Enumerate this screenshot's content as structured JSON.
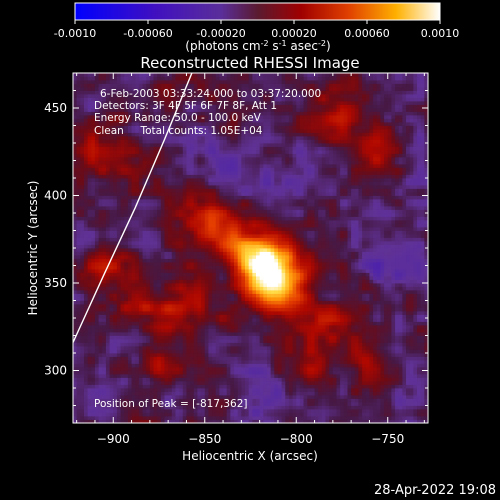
{
  "chart_data": {
    "type": "heatmap",
    "title": "Reconstructed RHESSI Image",
    "xlabel": "Heliocentric X (arcsec)",
    "ylabel": "Heliocentric Y (arcsec)",
    "xlim": [
      -922,
      -728
    ],
    "ylim": [
      270,
      470
    ],
    "xticks": [
      -900,
      -850,
      -800,
      -750
    ],
    "yticks": [
      300,
      350,
      400,
      450
    ],
    "colorbar": {
      "range": [
        -0.001,
        0.001
      ],
      "ticks": [
        "-0.0010",
        "-0.00060",
        "-0.00020",
        "0.00020",
        "0.00060",
        "0.0010"
      ],
      "unit_prefix": "(photons cm",
      "unit_exp1": "-2",
      "unit_mid": " s",
      "unit_exp2": "-1",
      "unit_mid2": " asec",
      "unit_exp3": "-2",
      "unit_suffix": ")"
    },
    "annotations": {
      "time": "6-Feb-2003 03:33:24.000 to 03:37:20.000",
      "detectors": "Detectors: 3F 4F 5F 6F 7F 8F, Att 1",
      "energy": "Energy Range: 50.0 - 100.0 keV",
      "clean": "Clean     Total counts: 1.05E+04",
      "peak": "Position of Peak = [-817,362]"
    },
    "peak": {
      "x": -817,
      "y": 362,
      "value": 0.001
    },
    "blobs": [
      {
        "x": -817,
        "y": 362,
        "amp": 0.00105,
        "sigma": 10
      },
      {
        "x": -808,
        "y": 346,
        "amp": 0.0006,
        "sigma": 11
      },
      {
        "x": -833,
        "y": 372,
        "amp": 0.0004,
        "sigma": 9
      },
      {
        "x": -851,
        "y": 385,
        "amp": 0.00035,
        "sigma": 10
      },
      {
        "x": -862,
        "y": 338,
        "amp": 0.0003,
        "sigma": 11
      },
      {
        "x": -888,
        "y": 334,
        "amp": 0.00028,
        "sigma": 9
      },
      {
        "x": -902,
        "y": 355,
        "amp": 0.00025,
        "sigma": 10
      },
      {
        "x": -873,
        "y": 305,
        "amp": 0.00022,
        "sigma": 8
      },
      {
        "x": -782,
        "y": 324,
        "amp": 0.00028,
        "sigma": 10
      },
      {
        "x": -760,
        "y": 304,
        "amp": 0.00022,
        "sigma": 9
      },
      {
        "x": -778,
        "y": 446,
        "amp": 0.0003,
        "sigma": 10
      },
      {
        "x": -760,
        "y": 426,
        "amp": 0.00022,
        "sigma": 9
      },
      {
        "x": -905,
        "y": 431,
        "amp": 0.00026,
        "sigma": 10
      },
      {
        "x": -888,
        "y": 411,
        "amp": 0.0002,
        "sigma": 9
      },
      {
        "x": -842,
        "y": 447,
        "amp": 0.00016,
        "sigma": 8
      },
      {
        "x": -790,
        "y": 302,
        "amp": 0.0002,
        "sigma": 8
      },
      {
        "x": -822,
        "y": 287,
        "amp": -0.00016,
        "sigma": 12
      },
      {
        "x": -752,
        "y": 368,
        "amp": -0.00018,
        "sigma": 13
      },
      {
        "x": -848,
        "y": 418,
        "amp": -0.00012,
        "sigma": 12
      },
      {
        "x": -800,
        "y": 410,
        "amp": -0.00014,
        "sigma": 14
      },
      {
        "x": -912,
        "y": 290,
        "amp": -0.00012,
        "sigma": 12
      }
    ],
    "limb": {
      "points": [
        [
          -922,
          316
        ],
        [
          -905,
          355
        ],
        [
          -888,
          393
        ],
        [
          -872,
          432
        ],
        [
          -857,
          470
        ]
      ]
    }
  },
  "footer": {
    "date": "28-Apr-2022 19:08"
  }
}
